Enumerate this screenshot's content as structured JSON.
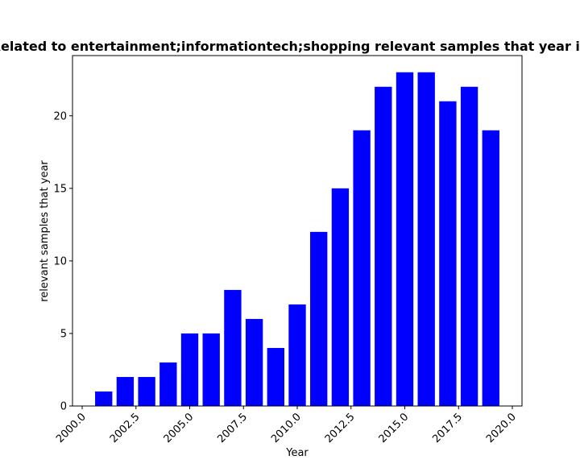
{
  "chart_data": {
    "type": "bar",
    "title": "Related to entertainment;informationtech;shopping relevant samples that year in",
    "xlabel": "Year",
    "ylabel": "relevant samples that year",
    "x": [
      2001,
      2002,
      2003,
      2004,
      2005,
      2006,
      2007,
      2008,
      2009,
      2010,
      2011,
      2012,
      2013,
      2014,
      2015,
      2016,
      2017,
      2018,
      2019
    ],
    "values": [
      1,
      2,
      2,
      3,
      5,
      5,
      8,
      6,
      4,
      7,
      12,
      15,
      19,
      22,
      23,
      23,
      21,
      22,
      19
    ],
    "xlim": [
      1999.55,
      2020.45
    ],
    "ylim": [
      0,
      24.15
    ],
    "xticks": [
      "2000.0",
      "2002.5",
      "2005.0",
      "2007.5",
      "2010.0",
      "2012.5",
      "2015.0",
      "2017.5",
      "2020.0"
    ],
    "yticks": [
      "0",
      "5",
      "10",
      "15",
      "20"
    ],
    "bar_color": "#0000ff",
    "grid": false
  }
}
